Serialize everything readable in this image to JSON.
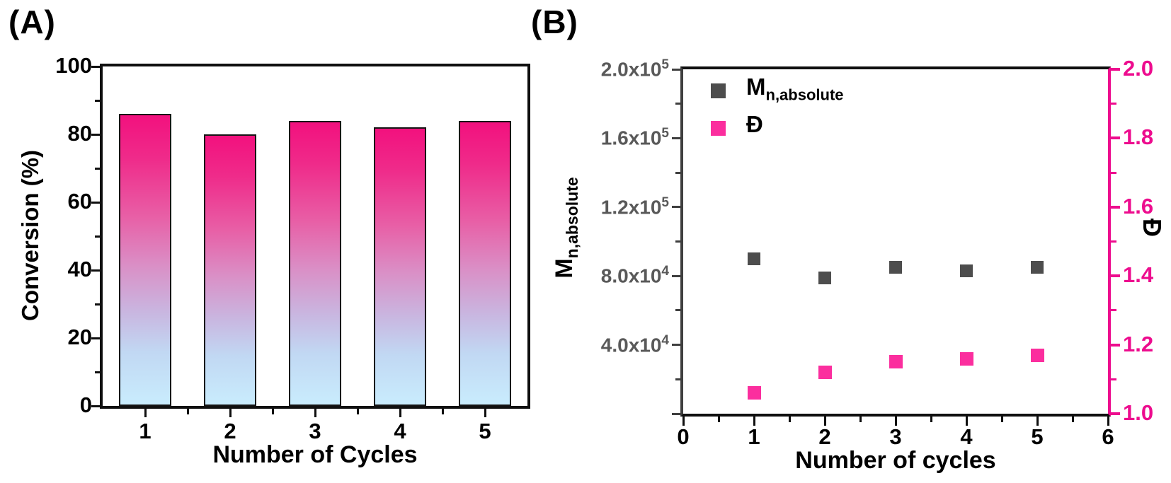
{
  "figure": {
    "panel_a_label": "(A)",
    "panel_b_label": "(B)"
  },
  "panel_a": {
    "y_axis_title": "Conversion (%)",
    "x_axis_title": "Number of Cycles",
    "y_tick_labels": [
      "100",
      "80",
      "60",
      "40",
      "20",
      "0"
    ],
    "x_tick_labels": [
      "1",
      "2",
      "3",
      "4",
      "5"
    ]
  },
  "panel_b": {
    "y_left_title_main": "M",
    "y_left_title_sub": "n,absolute",
    "y_right_title": "Đ",
    "x_axis_title": "Number of cycles",
    "y_left_tick_labels": [
      {
        "mantissa": "2.0x10",
        "exponent": "5"
      },
      {
        "mantissa": "1.6x10",
        "exponent": "5"
      },
      {
        "mantissa": "1.2x10",
        "exponent": "5"
      },
      {
        "mantissa": "8.0x10",
        "exponent": "4"
      },
      {
        "mantissa": "4.0x10",
        "exponent": "4"
      }
    ],
    "y_right_tick_labels": [
      "2.0",
      "1.8",
      "1.6",
      "1.4",
      "1.2",
      "1.0"
    ],
    "x_tick_labels": [
      "0",
      "1",
      "2",
      "3",
      "4",
      "5",
      "6"
    ],
    "legend": [
      {
        "label_main": "M",
        "label_sub": "n,absolute",
        "marker_color": "#4d4d4d"
      },
      {
        "label_main": "Đ",
        "label_sub": "",
        "marker_color": "#fb2e9e"
      }
    ]
  },
  "colors": {
    "bar_gradient_top": "#f2117e",
    "bar_gradient_bottom": "#c9ecfd",
    "bar_border": "#151515",
    "mn_marker": "#4d4d4d",
    "d_marker": "#fb2e9e",
    "right_axis_pink": "#ed0c8e",
    "left_axis_gray": "#3f3f3f",
    "gray_tick_text": "#595959"
  },
  "chart_data": [
    {
      "type": "bar",
      "panel": "A",
      "title": "",
      "categories": [
        1,
        2,
        3,
        4,
        5
      ],
      "values": [
        86,
        80,
        84,
        82,
        84
      ],
      "xlabel": "Number of Cycles",
      "ylabel": "Conversion (%)",
      "ylim": [
        0,
        100
      ],
      "yticks": [
        0,
        20,
        40,
        60,
        80,
        100
      ],
      "grid": false,
      "legend_position": "none"
    },
    {
      "type": "scatter",
      "panel": "B",
      "title": "",
      "x": [
        1,
        2,
        3,
        4,
        5
      ],
      "series": [
        {
          "name": "Mn,absolute",
          "axis": "left",
          "color": "#4d4d4d",
          "values": [
            90000,
            79000,
            85000,
            83000,
            85000
          ]
        },
        {
          "name": "Đ",
          "axis": "right",
          "color": "#fb2e9e",
          "values": [
            1.06,
            1.12,
            1.15,
            1.16,
            1.17
          ]
        }
      ],
      "xlabel": "Number of cycles",
      "ylabel_left": "Mn,absolute",
      "ylabel_right": "Đ",
      "xlim": [
        0,
        6
      ],
      "xticks": [
        0,
        1,
        2,
        3,
        4,
        5,
        6
      ],
      "ylim_left": [
        0,
        200000
      ],
      "yticks_left": [
        0,
        40000,
        80000,
        120000,
        160000,
        200000
      ],
      "ylim_right": [
        1.0,
        2.0
      ],
      "yticks_right": [
        1.0,
        1.2,
        1.4,
        1.6,
        1.8,
        2.0
      ],
      "grid": false,
      "legend_position": "top-left"
    }
  ]
}
